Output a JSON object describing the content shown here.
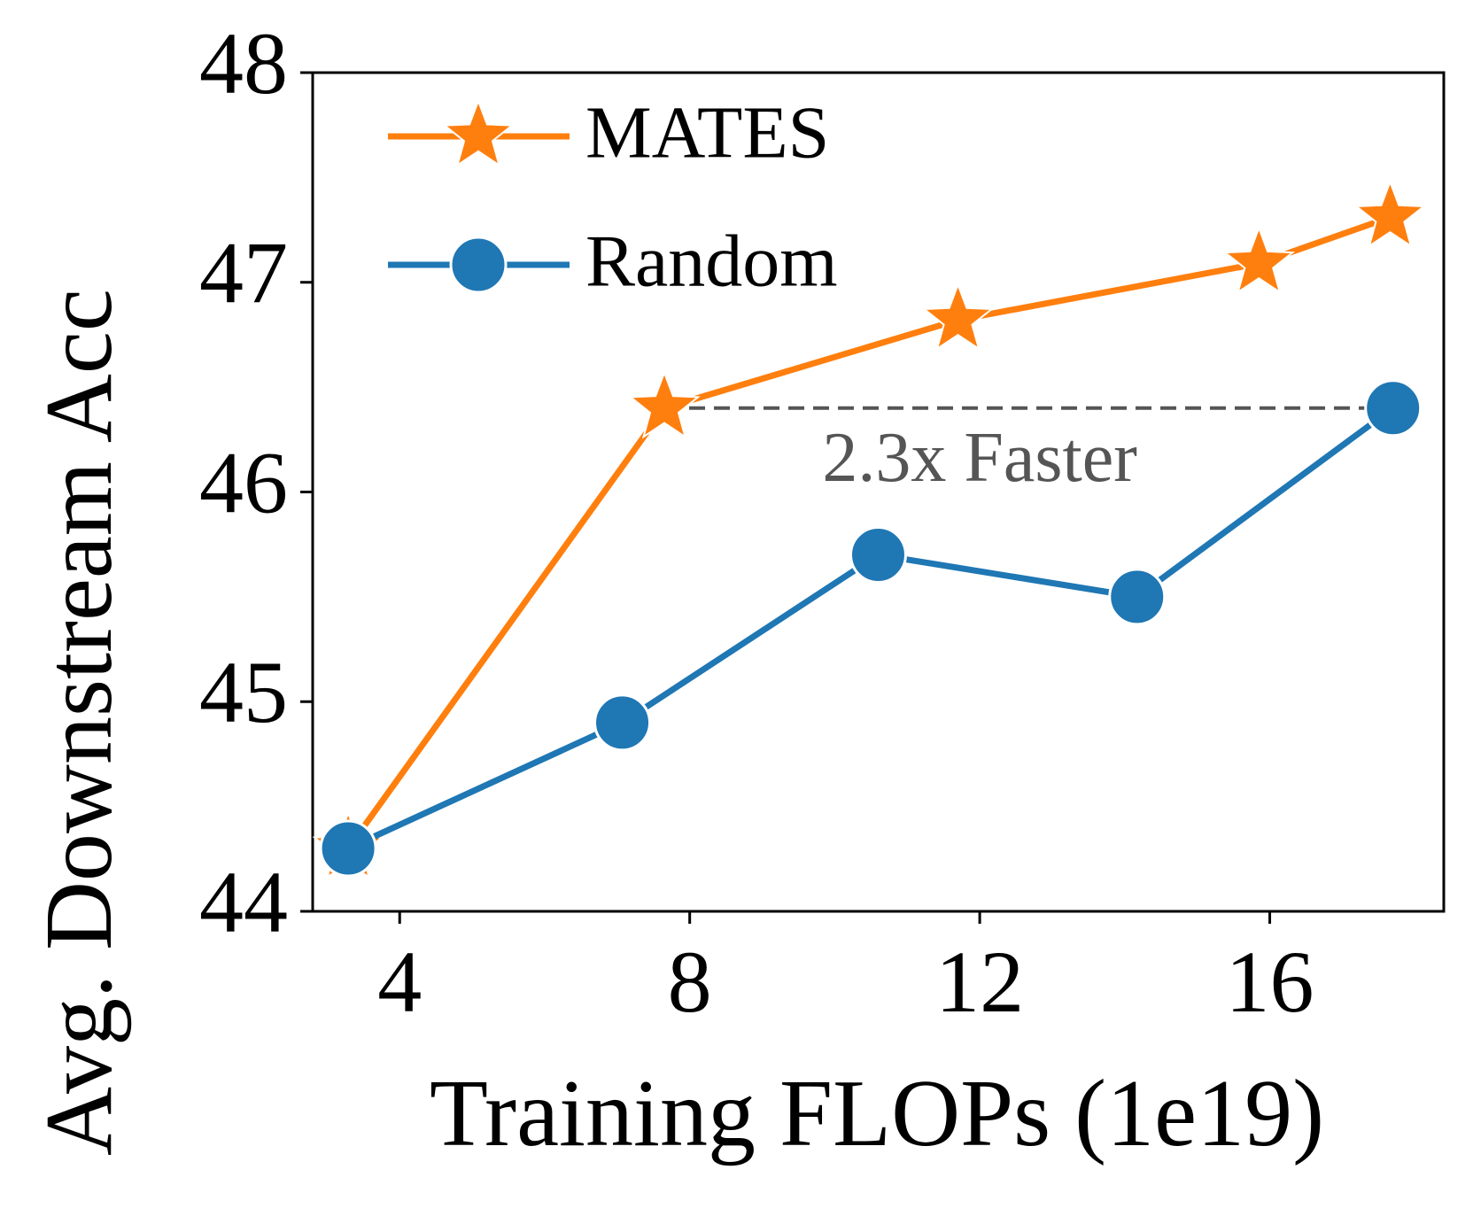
{
  "chart_data": {
    "type": "line",
    "xlabel": "Training FLOPs (1e19)",
    "ylabel": "Avg. Downstream Acc",
    "series": [
      {
        "name": "MATES",
        "color": "#ff7f0e",
        "marker": "star",
        "x": [
          3.29,
          7.65,
          11.7,
          15.85,
          17.66
        ],
        "values": [
          44.3,
          46.4,
          46.82,
          47.09,
          47.31
        ]
      },
      {
        "name": "Random",
        "color": "#1f77b4",
        "marker": "circle",
        "x": [
          3.29,
          7.07,
          10.6,
          14.17,
          17.7
        ],
        "values": [
          44.3,
          44.9,
          45.7,
          45.5,
          46.4
        ]
      }
    ],
    "xlim": [
      2.8,
      18.4
    ],
    "xticks": [
      4,
      8,
      12,
      16
    ],
    "ylim": [
      44,
      48
    ],
    "yticks": [
      44,
      45,
      46,
      47,
      48
    ],
    "legend": "upper left",
    "annotation": {
      "text": "2.3x Faster",
      "x": 12,
      "y": 46.13
    }
  }
}
